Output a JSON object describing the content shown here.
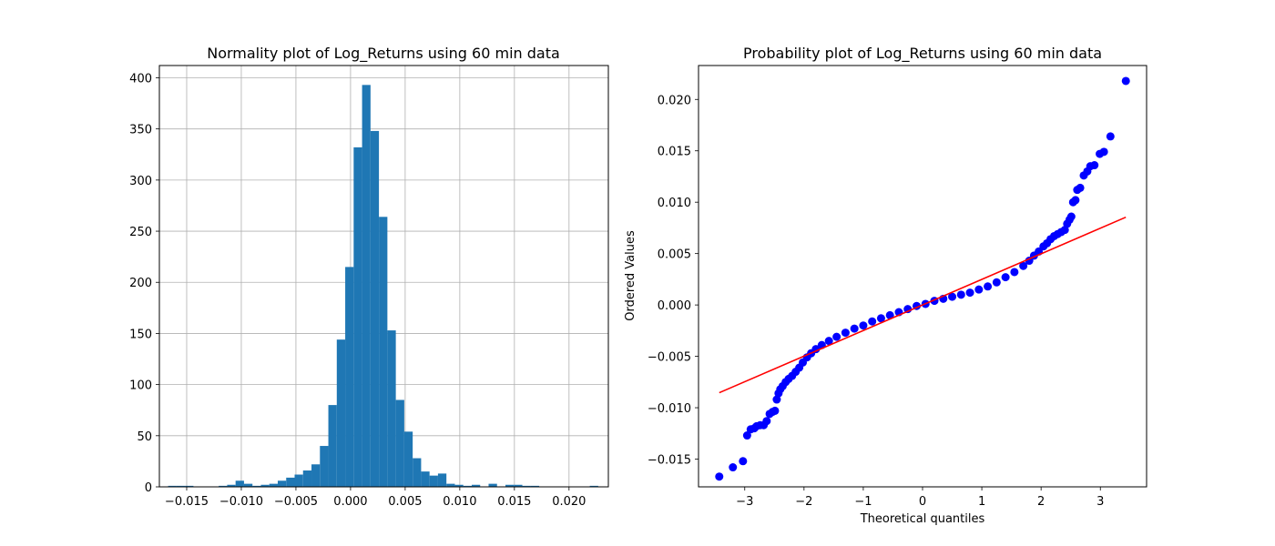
{
  "chart_data": [
    {
      "type": "bar",
      "title": "Normality plot of Log_Returns using 60 min data",
      "xlabel": "",
      "ylabel": "",
      "grid": true,
      "color": "#1f77b4",
      "xlim": [
        -0.0175,
        0.0236
      ],
      "ylim": [
        0,
        412
      ],
      "xticks": [
        -0.015,
        -0.01,
        -0.005,
        0.0,
        0.005,
        0.01,
        0.015,
        0.02
      ],
      "xtick_labels": [
        "−0.015",
        "−0.010",
        "−0.005",
        "0.000",
        "0.005",
        "0.010",
        "0.015",
        "0.020"
      ],
      "yticks": [
        0,
        50,
        100,
        150,
        200,
        250,
        300,
        350,
        400
      ],
      "ytick_labels": [
        "0",
        "50",
        "100",
        "150",
        "200",
        "250",
        "300",
        "350",
        "400"
      ],
      "bin_start": -0.0167,
      "bin_width": 0.000772,
      "counts": [
        1,
        1,
        1,
        0,
        0,
        0,
        1,
        2,
        6,
        3,
        1,
        2,
        3,
        6,
        9,
        12,
        16,
        22,
        40,
        80,
        144,
        215,
        332,
        393,
        348,
        264,
        153,
        85,
        54,
        28,
        15,
        11,
        13,
        3,
        2,
        1,
        2,
        0,
        3,
        0,
        2,
        2,
        1,
        1,
        0,
        0,
        0,
        0,
        0,
        0,
        1
      ]
    },
    {
      "type": "scatter",
      "title": "Probability plot of Log_Returns using 60 min data",
      "xlabel": "Theoretical quantiles",
      "ylabel": "Ordered Values",
      "grid": false,
      "point_color": "#0000ff",
      "line_color": "#ff0000",
      "xlim": [
        -3.78,
        3.78
      ],
      "ylim": [
        -0.0177,
        0.0233
      ],
      "xticks": [
        -3,
        -2,
        -1,
        0,
        1,
        2,
        3
      ],
      "xtick_labels": [
        "−3",
        "−2",
        "−1",
        "0",
        "1",
        "2",
        "3"
      ],
      "yticks": [
        -0.015,
        -0.01,
        -0.005,
        0.0,
        0.005,
        0.01,
        0.015,
        0.02
      ],
      "ytick_labels": [
        "−0.015",
        "−0.010",
        "−0.005",
        "0.000",
        "0.005",
        "0.010",
        "0.015",
        "0.020"
      ],
      "fit_line": {
        "slope": 0.00249,
        "intercept": 0.0,
        "x_range": [
          -3.43,
          3.43
        ]
      },
      "points": [
        [
          -3.43,
          -0.0167
        ],
        [
          -3.2,
          -0.0158
        ],
        [
          -3.03,
          -0.0152
        ],
        [
          -2.96,
          -0.0127
        ],
        [
          -2.9,
          -0.0121
        ],
        [
          -2.84,
          -0.012
        ],
        [
          -2.8,
          -0.0118
        ],
        [
          -2.74,
          -0.0117
        ],
        [
          -2.68,
          -0.0117
        ],
        [
          -2.63,
          -0.0113
        ],
        [
          -2.58,
          -0.0106
        ],
        [
          -2.53,
          -0.0104
        ],
        [
          -2.49,
          -0.0103
        ],
        [
          -2.46,
          -0.0092
        ],
        [
          -2.43,
          -0.0086
        ],
        [
          -2.4,
          -0.0082
        ],
        [
          -2.36,
          -0.0079
        ],
        [
          -2.31,
          -0.0075
        ],
        [
          -2.26,
          -0.0072
        ],
        [
          -2.2,
          -0.0069
        ],
        [
          -2.14,
          -0.0065
        ],
        [
          -2.08,
          -0.0061
        ],
        [
          -2.02,
          -0.0056
        ],
        [
          -1.95,
          -0.0051
        ],
        [
          -1.88,
          -0.0047
        ],
        [
          -1.8,
          -0.0043
        ],
        [
          -1.7,
          -0.0039
        ],
        [
          -1.58,
          -0.0035
        ],
        [
          -1.45,
          -0.0031
        ],
        [
          -1.3,
          -0.0027
        ],
        [
          -1.15,
          -0.0023
        ],
        [
          -1.0,
          -0.002
        ],
        [
          -0.85,
          -0.0016
        ],
        [
          -0.7,
          -0.0013
        ],
        [
          -0.55,
          -0.001
        ],
        [
          -0.4,
          -0.0007
        ],
        [
          -0.25,
          -0.0004
        ],
        [
          -0.1,
          -0.0001
        ],
        [
          0.05,
          0.0001
        ],
        [
          0.2,
          0.0004
        ],
        [
          0.35,
          0.0006
        ],
        [
          0.5,
          0.0008
        ],
        [
          0.65,
          0.001
        ],
        [
          0.8,
          0.0012
        ],
        [
          0.95,
          0.0015
        ],
        [
          1.1,
          0.0018
        ],
        [
          1.25,
          0.0022
        ],
        [
          1.4,
          0.0027
        ],
        [
          1.55,
          0.0032
        ],
        [
          1.7,
          0.0038
        ],
        [
          1.8,
          0.0043
        ],
        [
          1.88,
          0.0048
        ],
        [
          1.96,
          0.0052
        ],
        [
          2.04,
          0.0057
        ],
        [
          2.1,
          0.006
        ],
        [
          2.16,
          0.0064
        ],
        [
          2.22,
          0.0067
        ],
        [
          2.28,
          0.0069
        ],
        [
          2.34,
          0.0071
        ],
        [
          2.4,
          0.0073
        ],
        [
          2.44,
          0.0079
        ],
        [
          2.48,
          0.0083
        ],
        [
          2.51,
          0.0086
        ],
        [
          2.54,
          0.01
        ],
        [
          2.58,
          0.0102
        ],
        [
          2.61,
          0.0112
        ],
        [
          2.66,
          0.0114
        ],
        [
          2.72,
          0.0126
        ],
        [
          2.78,
          0.013
        ],
        [
          2.83,
          0.0135
        ],
        [
          2.9,
          0.0136
        ],
        [
          2.99,
          0.0147
        ],
        [
          3.06,
          0.0149
        ],
        [
          3.17,
          0.0164
        ],
        [
          3.43,
          0.0218
        ]
      ]
    }
  ]
}
